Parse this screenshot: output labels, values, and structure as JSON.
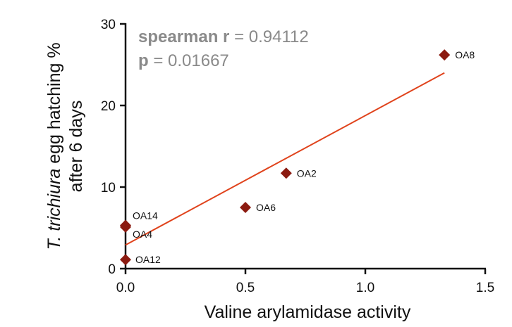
{
  "chart_data": {
    "type": "scatter",
    "xlabel": "Valine arylamidase activity",
    "ylabel_italic": "T. trichiura",
    "ylabel_rest": " egg hatching %",
    "ylabel_line2": "after 6 days",
    "xlim": [
      0,
      1.5
    ],
    "ylim": [
      0,
      30
    ],
    "xticks": [
      0.0,
      0.5,
      1.0,
      1.5
    ],
    "xtick_labels": [
      "0.0",
      "0.5",
      "1.0",
      "1.5"
    ],
    "yticks": [
      0,
      10,
      20,
      30
    ],
    "ytick_labels": [
      "0",
      "10",
      "20",
      "30"
    ],
    "grid": false,
    "marker": "diamond",
    "marker_color": "#8b1a10",
    "points": [
      {
        "label": "OA8",
        "x": 1.33,
        "y": 26.2
      },
      {
        "label": "OA2",
        "x": 0.67,
        "y": 11.7
      },
      {
        "label": "OA6",
        "x": 0.5,
        "y": 7.5
      },
      {
        "label": "OA14",
        "x": 0.0,
        "y": 5.3
      },
      {
        "label": "OA4",
        "x": 0.0,
        "y": 5.1
      },
      {
        "label": "OA12",
        "x": 0.0,
        "y": 1.1
      }
    ],
    "fit_line": {
      "color": "#e0431c",
      "x": [
        0.0,
        1.33
      ],
      "y": [
        2.9,
        24.0
      ]
    },
    "annotation": {
      "line1_key": "spearman r",
      "line1_value": " = 0.94112",
      "line2_key": "p",
      "line2_value": " = 0.01667"
    }
  }
}
